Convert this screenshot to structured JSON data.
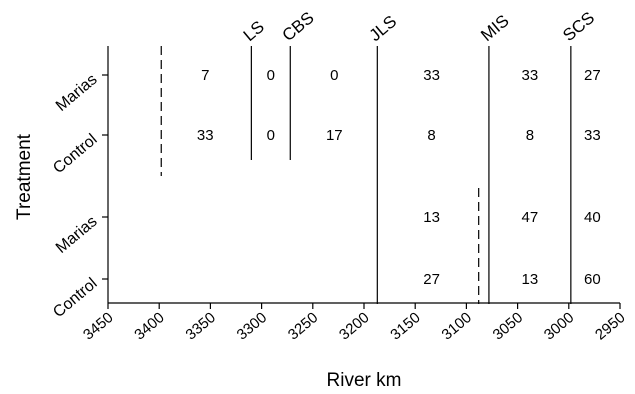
{
  "chart_data": {
    "type": "table",
    "xlabel": "River km",
    "ylabel": "Treatment",
    "x_axis": {
      "range": [
        3450,
        2950
      ],
      "reversed": true,
      "ticks": [
        3450,
        3400,
        3350,
        3300,
        3250,
        3200,
        3150,
        3100,
        3050,
        3000,
        2950
      ],
      "tick_labels": [
        "3450",
        "3400",
        "3350",
        "3300",
        "3250",
        "3200",
        "3150",
        "3100",
        "3050",
        "3000",
        "2950"
      ]
    },
    "rows": [
      {
        "label": "Marias"
      },
      {
        "label": "Control"
      },
      {
        "label": "Marias"
      },
      {
        "label": "Control"
      }
    ],
    "site_markers": [
      {
        "label": "LS",
        "x": 3310,
        "rows": [
          0,
          1
        ],
        "style": "solid"
      },
      {
        "label": "CBS",
        "x": 3272,
        "rows": [
          0,
          1
        ],
        "style": "solid"
      },
      {
        "label": "JLS",
        "x": 3187,
        "rows": [
          0,
          1,
          2,
          3
        ],
        "style": "solid"
      },
      {
        "label": "MIS",
        "x": 3078,
        "rows": [
          0,
          1,
          2,
          3
        ],
        "style": "solid"
      },
      {
        "label": "SCS",
        "x": 2998,
        "rows": [
          0,
          1,
          2,
          3
        ],
        "style": "solid"
      }
    ],
    "release_markers": [
      {
        "x": 3398,
        "rows": [
          0,
          1
        ],
        "style": "dashed"
      },
      {
        "x": 3088,
        "rows": [
          2,
          3
        ],
        "style": "dashed"
      }
    ],
    "cells": [
      {
        "row": 0,
        "x": 3355,
        "value": "7"
      },
      {
        "row": 0,
        "x": 3291,
        "value": "0"
      },
      {
        "row": 0,
        "x": 3229,
        "value": "0"
      },
      {
        "row": 0,
        "x": 3134,
        "value": "33"
      },
      {
        "row": 0,
        "x": 3038,
        "value": "33"
      },
      {
        "row": 0,
        "x": 2977,
        "value": "27"
      },
      {
        "row": 1,
        "x": 3355,
        "value": "33"
      },
      {
        "row": 1,
        "x": 3291,
        "value": "0"
      },
      {
        "row": 1,
        "x": 3229,
        "value": "17"
      },
      {
        "row": 1,
        "x": 3134,
        "value": "8"
      },
      {
        "row": 1,
        "x": 3038,
        "value": "8"
      },
      {
        "row": 1,
        "x": 2977,
        "value": "33"
      },
      {
        "row": 2,
        "x": 3134,
        "value": "13"
      },
      {
        "row": 2,
        "x": 3038,
        "value": "47"
      },
      {
        "row": 2,
        "x": 2977,
        "value": "40"
      },
      {
        "row": 3,
        "x": 3134,
        "value": "27"
      },
      {
        "row": 3,
        "x": 3038,
        "value": "13"
      },
      {
        "row": 3,
        "x": 2977,
        "value": "60"
      }
    ]
  }
}
